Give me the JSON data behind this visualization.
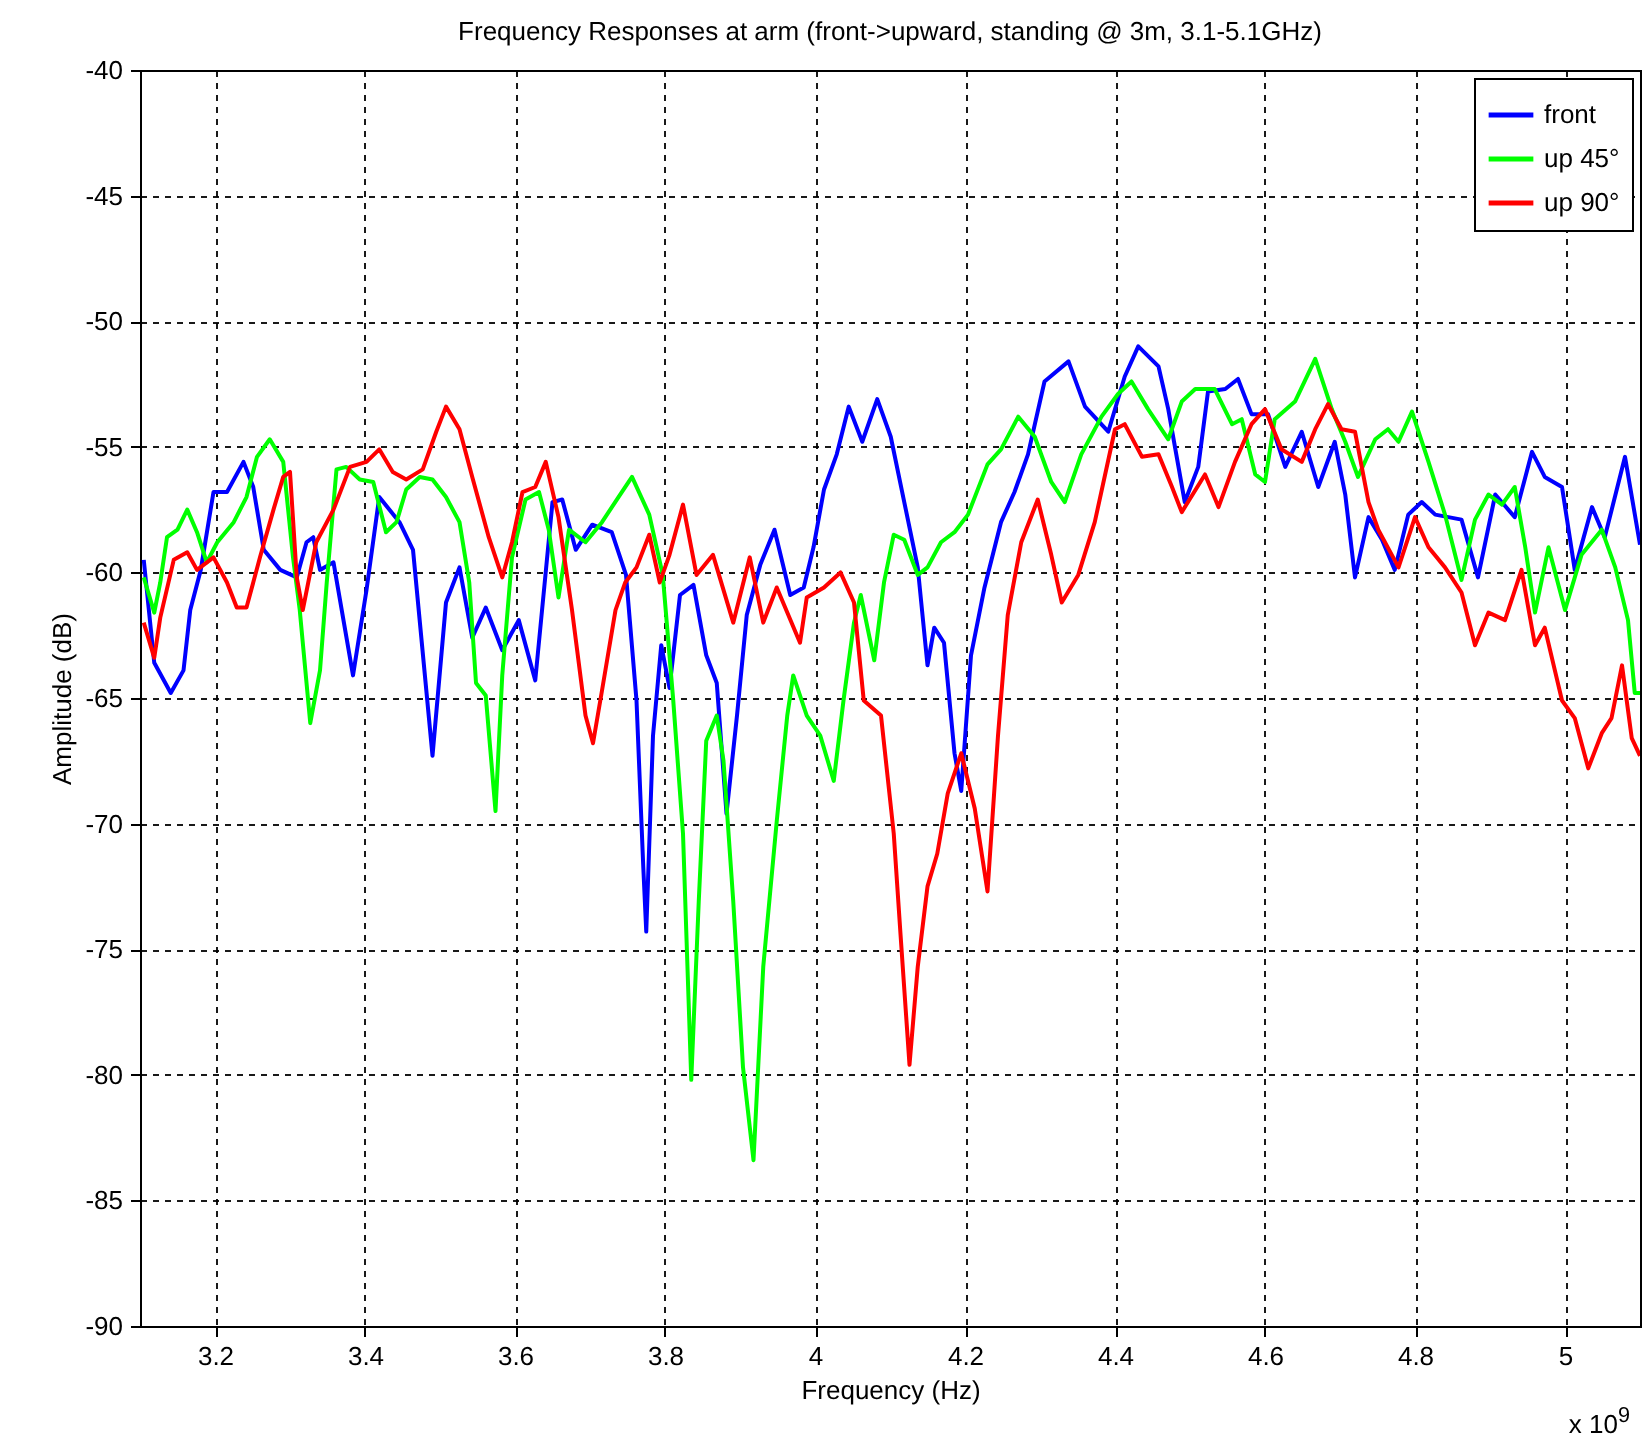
{
  "chart_data": {
    "type": "line",
    "title": "Frequency Responses at arm (front->upward, standing @ 3m, 3.1-5.1GHz)",
    "xlabel": "Frequency (Hz)",
    "ylabel": "Amplitude (dB)",
    "annotations": [
      "x 10$^{9}$"
    ],
    "xlim": [
      3.1,
      5.1
    ],
    "xticks": [
      3.2,
      3.4,
      3.6,
      3.8,
      4,
      4.2,
      4.4,
      4.6,
      4.8,
      5
    ],
    "ylim": [
      -90,
      -40
    ],
    "yticks": [
      -90,
      -85,
      -80,
      -75,
      -70,
      -65,
      -60,
      -55,
      -50,
      -45,
      -40
    ],
    "grid": true,
    "legend": "top right",
    "line_style": "solid",
    "series": [
      {
        "name": "front",
        "color": "#0000ff",
        "x": [
          3.105,
          3.119,
          3.141,
          3.158,
          3.167,
          3.181,
          3.198,
          3.216,
          3.238,
          3.251,
          3.265,
          3.287,
          3.309,
          3.322,
          3.331,
          3.34,
          3.358,
          3.384,
          3.402,
          3.419,
          3.446,
          3.464,
          3.49,
          3.508,
          3.526,
          3.543,
          3.561,
          3.583,
          3.605,
          3.627,
          3.65,
          3.663,
          3.681,
          3.703,
          3.729,
          3.748,
          3.762,
          3.771,
          3.775,
          3.784,
          3.795,
          3.806,
          3.82,
          3.838,
          3.855,
          3.869,
          3.882,
          3.896,
          3.909,
          3.927,
          3.946,
          3.967,
          3.985,
          3.998,
          4.012,
          4.029,
          4.045,
          4.063,
          4.083,
          4.101,
          4.119,
          4.137,
          4.15,
          4.159,
          4.172,
          4.186,
          4.195,
          4.208,
          4.226,
          4.248,
          4.266,
          4.284,
          4.306,
          4.338,
          4.36,
          4.391,
          4.413,
          4.431,
          4.458,
          4.471,
          4.493,
          4.511,
          4.524,
          4.547,
          4.564,
          4.582,
          4.604,
          4.627,
          4.649,
          4.671,
          4.693,
          4.707,
          4.72,
          4.738,
          4.756,
          4.773,
          4.791,
          4.809,
          4.827,
          4.862,
          4.884,
          4.907,
          4.933,
          4.956,
          4.973,
          4.996,
          5.013,
          5.036,
          5.053,
          5.08,
          5.1
        ],
        "values": [
          -59.5,
          -63.6,
          -64.8,
          -63.9,
          -61.5,
          -59.9,
          -56.8,
          -56.8,
          -55.6,
          -56.6,
          -59.1,
          -59.9,
          -60.2,
          -58.8,
          -58.6,
          -59.9,
          -59.6,
          -64.1,
          -60.7,
          -57.0,
          -58.0,
          -59.1,
          -67.3,
          -61.2,
          -59.8,
          -62.6,
          -61.4,
          -63.1,
          -61.9,
          -64.3,
          -57.2,
          -57.1,
          -59.1,
          -58.1,
          -58.4,
          -60.1,
          -65.1,
          -71.7,
          -74.3,
          -66.5,
          -62.9,
          -64.6,
          -60.9,
          -60.5,
          -63.3,
          -64.4,
          -69.6,
          -65.7,
          -61.7,
          -59.7,
          -58.3,
          -60.9,
          -60.6,
          -59.0,
          -56.7,
          -55.3,
          -53.4,
          -54.8,
          -53.1,
          -54.6,
          -57.2,
          -59.8,
          -63.7,
          -62.2,
          -62.8,
          -67.2,
          -68.7,
          -63.3,
          -60.6,
          -58.0,
          -56.8,
          -55.3,
          -52.4,
          -51.6,
          -53.4,
          -54.4,
          -52.2,
          -51.0,
          -51.8,
          -53.5,
          -57.2,
          -55.8,
          -52.8,
          -52.7,
          -52.3,
          -53.7,
          -53.7,
          -55.8,
          -54.4,
          -56.6,
          -54.8,
          -56.9,
          -60.2,
          -57.8,
          -58.7,
          -59.9,
          -57.7,
          -57.2,
          -57.7,
          -57.9,
          -60.2,
          -56.9,
          -57.8,
          -55.2,
          -56.2,
          -56.6,
          -59.9,
          -57.4,
          -58.6,
          -55.4,
          -58.9
        ]
      },
      {
        "name": "up 45°",
        "color": "#00ff00",
        "x": [
          3.105,
          3.119,
          3.127,
          3.136,
          3.15,
          3.163,
          3.176,
          3.189,
          3.203,
          3.225,
          3.242,
          3.256,
          3.273,
          3.291,
          3.304,
          3.313,
          3.327,
          3.34,
          3.349,
          3.362,
          3.375,
          3.393,
          3.411,
          3.428,
          3.442,
          3.455,
          3.473,
          3.49,
          3.508,
          3.526,
          3.539,
          3.548,
          3.561,
          3.574,
          3.583,
          3.596,
          3.614,
          3.632,
          3.645,
          3.658,
          3.672,
          3.694,
          3.716,
          3.738,
          3.756,
          3.779,
          3.797,
          3.811,
          3.824,
          3.835,
          3.845,
          3.855,
          3.869,
          3.878,
          3.891,
          3.904,
          3.918,
          3.931,
          3.949,
          3.963,
          3.971,
          3.989,
          4.007,
          4.025,
          4.038,
          4.052,
          4.061,
          4.079,
          4.092,
          4.105,
          4.119,
          4.137,
          4.15,
          4.168,
          4.186,
          4.204,
          4.23,
          4.248,
          4.271,
          4.293,
          4.315,
          4.333,
          4.355,
          4.382,
          4.404,
          4.422,
          4.444,
          4.471,
          4.489,
          4.507,
          4.533,
          4.556,
          4.569,
          4.587,
          4.6,
          4.613,
          4.64,
          4.667,
          4.689,
          4.707,
          4.724,
          4.747,
          4.764,
          4.778,
          4.796,
          4.818,
          4.84,
          4.862,
          4.88,
          4.898,
          4.916,
          4.933,
          4.947,
          4.96,
          4.978,
          5.0,
          5.022,
          5.049,
          5.067,
          5.084,
          5.093,
          5.1
        ],
        "values": [
          -60.2,
          -61.6,
          -60.4,
          -58.6,
          -58.3,
          -57.5,
          -58.4,
          -59.6,
          -58.8,
          -58.0,
          -57.0,
          -55.4,
          -54.7,
          -55.6,
          -59.4,
          -61.5,
          -66.0,
          -63.9,
          -60.4,
          -55.9,
          -55.8,
          -56.3,
          -56.4,
          -58.4,
          -58.0,
          -56.7,
          -56.2,
          -56.3,
          -57.0,
          -58.0,
          -60.4,
          -64.4,
          -64.9,
          -69.5,
          -64.1,
          -59.4,
          -57.1,
          -56.8,
          -58.3,
          -61.0,
          -58.3,
          -58.8,
          -58.0,
          -57.0,
          -56.2,
          -57.7,
          -60.1,
          -65.1,
          -70.4,
          -80.2,
          -73.1,
          -66.7,
          -65.7,
          -67.5,
          -73.1,
          -79.7,
          -83.4,
          -75.7,
          -69.9,
          -65.7,
          -64.1,
          -65.7,
          -66.5,
          -68.3,
          -65.1,
          -62.0,
          -60.9,
          -63.5,
          -60.4,
          -58.5,
          -58.7,
          -60.1,
          -59.8,
          -58.8,
          -58.4,
          -57.7,
          -55.7,
          -55.1,
          -53.8,
          -54.6,
          -56.4,
          -57.2,
          -55.3,
          -53.8,
          -52.9,
          -52.4,
          -53.5,
          -54.7,
          -53.2,
          -52.7,
          -52.7,
          -54.1,
          -53.9,
          -56.1,
          -56.4,
          -53.9,
          -53.2,
          -51.5,
          -53.5,
          -54.8,
          -56.2,
          -54.7,
          -54.3,
          -54.8,
          -53.6,
          -55.6,
          -57.7,
          -60.3,
          -57.9,
          -56.9,
          -57.3,
          -56.6,
          -59.0,
          -61.6,
          -59.0,
          -61.5,
          -59.3,
          -58.3,
          -59.8,
          -61.9,
          -64.8,
          -64.8
        ]
      },
      {
        "name": "up 90°",
        "color": "#ff0000",
        "x": [
          3.105,
          3.119,
          3.127,
          3.145,
          3.163,
          3.176,
          3.198,
          3.216,
          3.229,
          3.242,
          3.26,
          3.278,
          3.291,
          3.3,
          3.309,
          3.317,
          3.335,
          3.358,
          3.38,
          3.402,
          3.419,
          3.437,
          3.455,
          3.477,
          3.495,
          3.508,
          3.526,
          3.543,
          3.565,
          3.583,
          3.596,
          3.61,
          3.627,
          3.641,
          3.658,
          3.676,
          3.694,
          3.704,
          3.716,
          3.734,
          3.747,
          3.762,
          3.779,
          3.793,
          3.806,
          3.824,
          3.842,
          3.864,
          3.891,
          3.913,
          3.931,
          3.949,
          3.98,
          3.989,
          4.012,
          4.034,
          4.052,
          4.065,
          4.088,
          4.105,
          4.114,
          4.126,
          4.137,
          4.15,
          4.163,
          4.177,
          4.195,
          4.213,
          4.23,
          4.244,
          4.257,
          4.275,
          4.297,
          4.315,
          4.329,
          4.351,
          4.373,
          4.4,
          4.413,
          4.436,
          4.458,
          4.476,
          4.489,
          4.52,
          4.538,
          4.56,
          4.582,
          4.6,
          4.622,
          4.649,
          4.667,
          4.684,
          4.702,
          4.72,
          4.738,
          4.751,
          4.778,
          4.8,
          4.818,
          4.84,
          4.862,
          4.88,
          4.898,
          4.92,
          4.942,
          4.96,
          4.973,
          4.996,
          5.013,
          5.031,
          5.049,
          5.062,
          5.076,
          5.089,
          5.1
        ],
        "values": [
          -62.0,
          -63.4,
          -61.8,
          -59.5,
          -59.2,
          -59.9,
          -59.4,
          -60.4,
          -61.4,
          -61.4,
          -59.4,
          -57.5,
          -56.2,
          -56.0,
          -60.2,
          -61.5,
          -58.8,
          -57.5,
          -55.8,
          -55.6,
          -55.1,
          -56.0,
          -56.3,
          -55.9,
          -54.4,
          -53.4,
          -54.3,
          -56.2,
          -58.6,
          -60.2,
          -58.8,
          -56.8,
          -56.6,
          -55.6,
          -57.8,
          -61.5,
          -65.7,
          -66.8,
          -64.7,
          -61.5,
          -60.4,
          -59.8,
          -58.5,
          -60.4,
          -59.3,
          -57.3,
          -60.1,
          -59.3,
          -62.0,
          -59.4,
          -62.0,
          -60.6,
          -62.8,
          -61.0,
          -60.6,
          -60.0,
          -61.2,
          -65.1,
          -65.7,
          -70.4,
          -74.4,
          -79.6,
          -75.7,
          -72.5,
          -71.2,
          -68.8,
          -67.2,
          -69.4,
          -72.7,
          -66.5,
          -61.7,
          -58.8,
          -57.1,
          -59.3,
          -61.2,
          -60.1,
          -58.0,
          -54.3,
          -54.1,
          -55.4,
          -55.3,
          -56.6,
          -57.6,
          -56.1,
          -57.4,
          -55.6,
          -54.1,
          -53.5,
          -55.1,
          -55.6,
          -54.3,
          -53.3,
          -54.3,
          -54.4,
          -57.2,
          -58.3,
          -59.8,
          -57.8,
          -59.0,
          -59.8,
          -60.8,
          -62.9,
          -61.6,
          -61.9,
          -59.9,
          -62.9,
          -62.2,
          -65.1,
          -65.8,
          -67.8,
          -66.4,
          -65.8,
          -63.7,
          -66.6,
          -67.3
        ]
      }
    ]
  }
}
